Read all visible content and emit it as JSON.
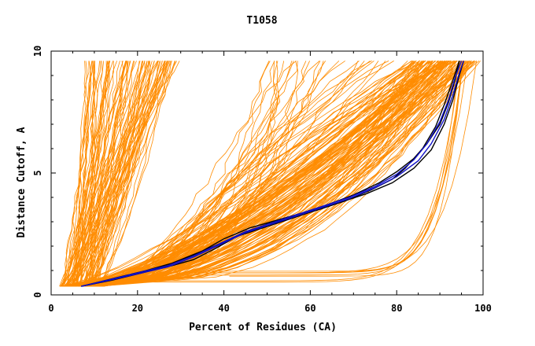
{
  "chart_data": {
    "type": "line",
    "title": "T1058",
    "xlabel": "Percent of Residues (CA)",
    "ylabel": "Distance Cutoff, A",
    "xlim": [
      0,
      100
    ],
    "ylim": [
      0,
      10
    ],
    "x_ticks": [
      0,
      20,
      40,
      60,
      80,
      100
    ],
    "x_tick_labels": [
      "0",
      "20",
      "40",
      "60",
      "80",
      "100"
    ],
    "y_ticks": [
      0,
      5,
      10
    ],
    "y_tick_labels": [
      "0",
      "5",
      "10"
    ],
    "grid": false,
    "legend": "none",
    "colors": {
      "background_group": "#ff8c00",
      "highlight_dark": "#000000",
      "highlight_blue": "#1010c8"
    },
    "series": [
      {
        "color": "#000000",
        "points": [
          [
            7,
            0.35
          ],
          [
            15,
            0.7
          ],
          [
            22,
            1.0
          ],
          [
            28,
            1.3
          ],
          [
            35,
            1.8
          ],
          [
            40,
            2.3
          ],
          [
            46,
            2.75
          ],
          [
            52,
            3.05
          ],
          [
            58,
            3.35
          ],
          [
            64,
            3.7
          ],
          [
            70,
            4.1
          ],
          [
            76,
            4.6
          ],
          [
            80,
            5.05
          ],
          [
            84,
            5.6
          ],
          [
            87,
            6.2
          ],
          [
            90,
            7.0
          ],
          [
            92,
            7.9
          ],
          [
            93.5,
            8.8
          ],
          [
            94.5,
            9.6
          ]
        ]
      },
      {
        "color": "#000000",
        "points": [
          [
            7,
            0.35
          ],
          [
            15,
            0.65
          ],
          [
            22,
            0.95
          ],
          [
            28,
            1.2
          ],
          [
            33,
            1.45
          ],
          [
            38,
            1.9
          ],
          [
            44,
            2.5
          ],
          [
            50,
            2.9
          ],
          [
            56,
            3.2
          ],
          [
            62,
            3.5
          ],
          [
            68,
            3.85
          ],
          [
            74,
            4.3
          ],
          [
            79,
            4.75
          ],
          [
            82,
            5.2
          ],
          [
            86,
            6.0
          ],
          [
            89,
            6.9
          ],
          [
            91,
            7.8
          ],
          [
            93,
            8.8
          ],
          [
            94.5,
            9.6
          ]
        ]
      },
      {
        "color": "#000000",
        "points": [
          [
            7,
            0.35
          ],
          [
            14,
            0.6
          ],
          [
            21,
            0.9
          ],
          [
            27,
            1.2
          ],
          [
            32,
            1.55
          ],
          [
            37,
            1.95
          ],
          [
            43,
            2.4
          ],
          [
            49,
            2.75
          ],
          [
            55,
            3.1
          ],
          [
            61,
            3.45
          ],
          [
            67,
            3.8
          ],
          [
            73,
            4.15
          ],
          [
            79,
            4.6
          ],
          [
            84,
            5.2
          ],
          [
            88,
            5.95
          ],
          [
            91,
            7.0
          ],
          [
            93,
            8.0
          ],
          [
            94.5,
            9.0
          ],
          [
            95.5,
            9.6
          ]
        ]
      },
      {
        "color": "#1010c8",
        "points": [
          [
            7,
            0.35
          ],
          [
            14,
            0.65
          ],
          [
            21,
            0.95
          ],
          [
            27,
            1.2
          ],
          [
            33,
            1.6
          ],
          [
            39,
            2.1
          ],
          [
            45,
            2.6
          ],
          [
            51,
            2.95
          ],
          [
            57,
            3.3
          ],
          [
            63,
            3.65
          ],
          [
            69,
            4.0
          ],
          [
            75,
            4.45
          ],
          [
            80,
            4.95
          ],
          [
            84,
            5.55
          ],
          [
            87,
            6.2
          ],
          [
            90,
            7.1
          ],
          [
            92,
            8.0
          ],
          [
            93.5,
            8.9
          ],
          [
            95,
            9.6
          ]
        ]
      },
      {
        "color": "#1010c8",
        "points": [
          [
            7,
            0.35
          ],
          [
            14,
            0.62
          ],
          [
            21,
            0.9
          ],
          [
            27,
            1.15
          ],
          [
            33,
            1.55
          ],
          [
            39,
            2.05
          ],
          [
            45,
            2.55
          ],
          [
            51,
            2.9
          ],
          [
            57,
            3.25
          ],
          [
            63,
            3.6
          ],
          [
            69,
            3.95
          ],
          [
            75,
            4.4
          ],
          [
            80,
            4.85
          ],
          [
            85,
            5.5
          ],
          [
            88,
            6.2
          ],
          [
            91,
            7.2
          ],
          [
            93,
            8.2
          ],
          [
            94.5,
            9.1
          ],
          [
            95.5,
            9.6
          ]
        ]
      }
    ]
  }
}
